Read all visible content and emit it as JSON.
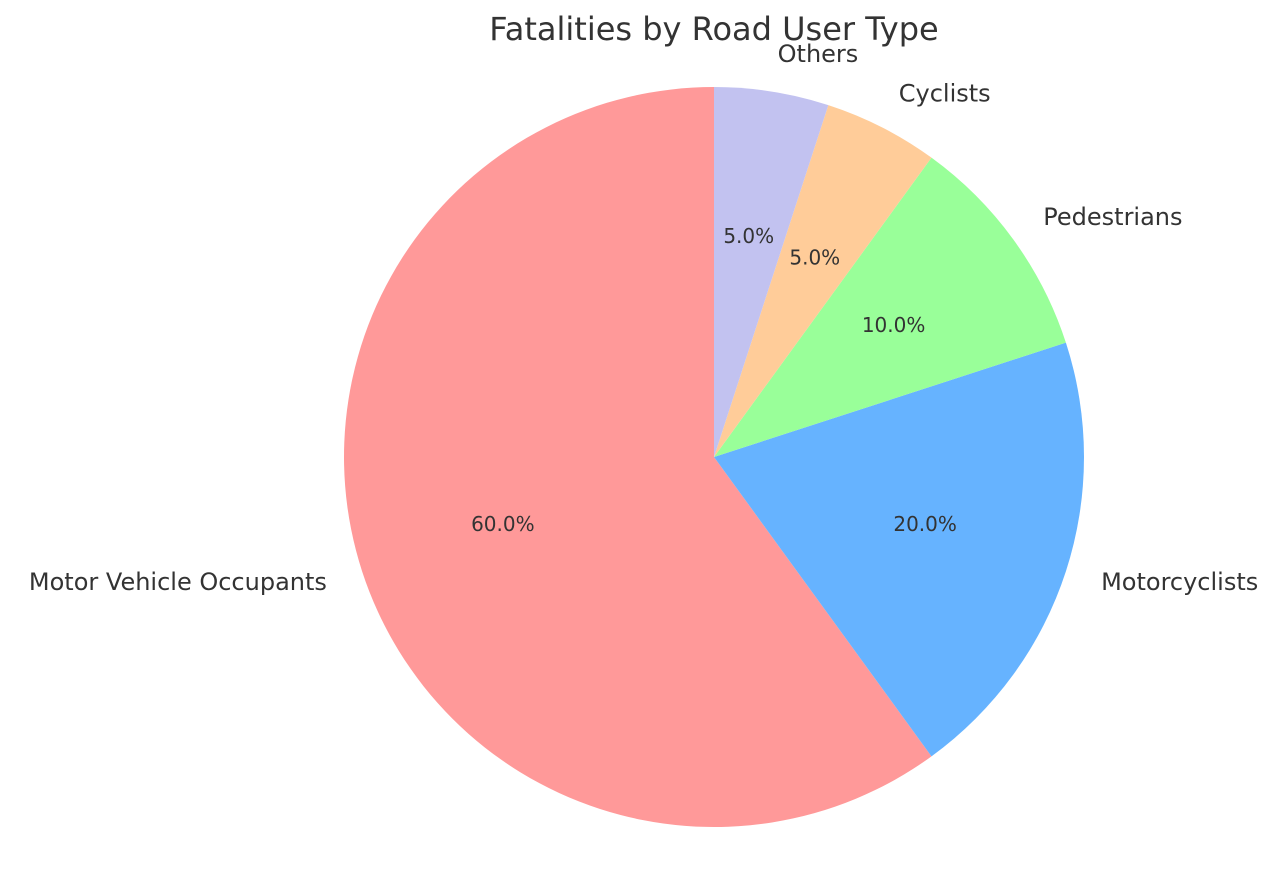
{
  "chart_data": {
    "type": "pie",
    "title": "Fatalities by Road User Type",
    "slices": [
      {
        "label": "Motor Vehicle Occupants",
        "value": 60.0,
        "pct_text": "60.0%",
        "color": "#ff9999"
      },
      {
        "label": "Motorcyclists",
        "value": 20.0,
        "pct_text": "20.0%",
        "color": "#66b3ff"
      },
      {
        "label": "Pedestrians",
        "value": 10.0,
        "pct_text": "10.0%",
        "color": "#99ff99"
      },
      {
        "label": "Cyclists",
        "value": 5.0,
        "pct_text": "5.0%",
        "color": "#ffcc99"
      },
      {
        "label": "Others",
        "value": 5.0,
        "pct_text": "5.0%",
        "color": "#c2c2f0"
      }
    ],
    "start_angle_deg": 90,
    "direction": "counterclockwise",
    "legend": "none"
  }
}
